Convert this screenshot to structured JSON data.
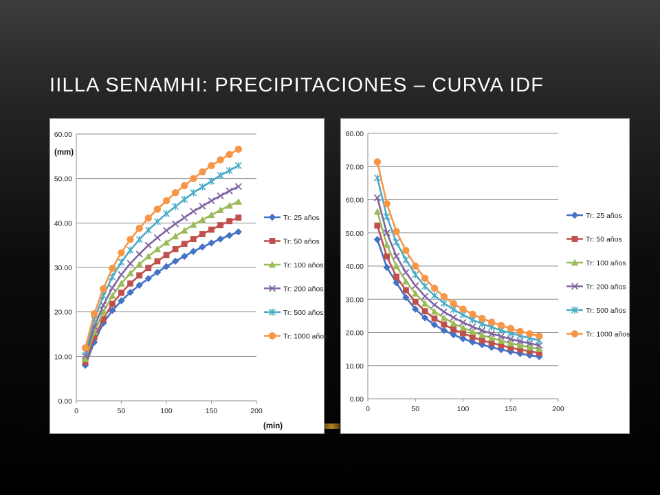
{
  "slide": {
    "title": "IILLA SENAMHI:  PRECIPITACIONES – CURVA IDF"
  },
  "colors": [
    "#4472c4",
    "#c0504d",
    "#9bbb59",
    "#8064a2",
    "#4bacc6",
    "#f79646"
  ],
  "markers": [
    "diamond",
    "square",
    "triangle",
    "x",
    "star",
    "circle"
  ],
  "chart_data": [
    {
      "type": "line",
      "title": "",
      "ylabel": "(mm)",
      "xlabel": "(min)",
      "xlim": [
        0,
        200
      ],
      "ylim": [
        0,
        60
      ],
      "x_ticks": [
        0,
        50,
        100,
        150,
        200
      ],
      "y_ticks": [
        "0.00",
        "10.00",
        "20.00",
        "30.00",
        "40.00",
        "50.00",
        "60.00"
      ],
      "grid": "horizontal",
      "legend_position": "right",
      "x": [
        10,
        20,
        30,
        40,
        50,
        60,
        70,
        80,
        90,
        100,
        110,
        120,
        130,
        140,
        150,
        160,
        170,
        180
      ],
      "series": [
        {
          "name": "Tr: 25 años",
          "values": [
            8.0,
            13.2,
            17.5,
            20.3,
            22.5,
            24.4,
            26.0,
            27.5,
            28.9,
            30.2,
            31.4,
            32.5,
            33.6,
            34.6,
            35.5,
            36.4,
            37.2,
            38.0
          ]
        },
        {
          "name": "Tr: 50 años",
          "values": [
            8.7,
            14.3,
            18.4,
            21.8,
            24.3,
            26.4,
            28.2,
            29.9,
            31.4,
            32.8,
            34.1,
            35.3,
            36.4,
            37.5,
            38.5,
            39.5,
            40.4,
            41.2
          ]
        },
        {
          "name": "Tr: 100 años",
          "values": [
            9.4,
            15.5,
            20.0,
            23.6,
            26.4,
            28.7,
            30.7,
            32.5,
            34.1,
            35.6,
            37.0,
            38.3,
            39.6,
            40.7,
            41.8,
            42.9,
            43.9,
            44.8
          ]
        },
        {
          "name": "Tr: 200 años",
          "values": [
            10.1,
            16.7,
            21.5,
            25.4,
            28.4,
            30.9,
            33.0,
            35.0,
            36.7,
            38.3,
            39.8,
            41.2,
            42.6,
            43.8,
            45.0,
            46.1,
            47.2,
            48.2
          ]
        },
        {
          "name": "Tr: 500 años",
          "values": [
            11.1,
            18.3,
            23.6,
            27.9,
            31.2,
            33.9,
            36.3,
            38.4,
            40.3,
            42.1,
            43.7,
            45.3,
            46.8,
            48.1,
            49.4,
            50.7,
            51.8,
            52.9
          ]
        },
        {
          "name": "Tr: 1000 años",
          "values": [
            11.9,
            19.6,
            25.2,
            29.8,
            33.3,
            36.3,
            38.8,
            41.1,
            43.1,
            45.0,
            46.8,
            48.4,
            50.0,
            51.5,
            52.9,
            54.2,
            55.4,
            56.6
          ]
        }
      ]
    },
    {
      "type": "line",
      "title": "",
      "ylabel": "",
      "xlabel": "",
      "xlim": [
        0,
        200
      ],
      "ylim": [
        0,
        80
      ],
      "x_ticks": [
        0,
        50,
        100,
        150,
        200
      ],
      "y_ticks": [
        "0.00",
        "10.00",
        "20.00",
        "30.00",
        "40.00",
        "50.00",
        "60.00",
        "70.00",
        "80.00"
      ],
      "grid": "horizontal",
      "legend_position": "right",
      "x": [
        10,
        20,
        30,
        40,
        50,
        60,
        70,
        80,
        90,
        100,
        110,
        120,
        130,
        140,
        150,
        160,
        170,
        180
      ],
      "series": [
        {
          "name": "Tr: 25 años",
          "values": [
            48.0,
            39.6,
            35.0,
            30.5,
            27.0,
            24.4,
            22.3,
            20.6,
            19.3,
            18.1,
            17.1,
            16.3,
            15.5,
            14.8,
            14.2,
            13.6,
            13.1,
            12.7
          ]
        },
        {
          "name": "Tr: 50 años",
          "values": [
            52.2,
            42.9,
            36.8,
            32.7,
            29.2,
            26.4,
            24.2,
            22.4,
            20.9,
            19.7,
            18.6,
            17.6,
            16.8,
            16.1,
            15.4,
            14.8,
            14.3,
            13.8
          ]
        },
        {
          "name": "Tr: 100 años",
          "values": [
            56.4,
            46.4,
            40.0,
            35.4,
            31.7,
            28.7,
            26.3,
            24.4,
            22.7,
            21.4,
            20.2,
            19.2,
            18.3,
            17.5,
            16.7,
            16.1,
            15.5,
            15.0
          ]
        },
        {
          "name": "Tr: 200 años",
          "values": [
            60.6,
            50.0,
            43.0,
            38.1,
            34.1,
            30.9,
            28.3,
            26.2,
            24.5,
            23.0,
            21.7,
            20.6,
            19.6,
            18.8,
            18.0,
            17.3,
            16.7,
            16.1
          ]
        },
        {
          "name": "Tr: 500 años",
          "values": [
            66.6,
            54.9,
            47.2,
            41.9,
            37.4,
            33.9,
            31.1,
            28.8,
            26.9,
            25.3,
            23.8,
            22.6,
            21.6,
            20.6,
            19.8,
            19.0,
            18.3,
            17.6
          ]
        },
        {
          "name": "Tr: 1000 años",
          "values": [
            71.4,
            58.8,
            50.4,
            44.7,
            40.0,
            36.3,
            33.3,
            30.8,
            28.7,
            27.0,
            25.5,
            24.2,
            23.1,
            22.1,
            21.2,
            20.3,
            19.6,
            18.9
          ]
        }
      ]
    }
  ]
}
